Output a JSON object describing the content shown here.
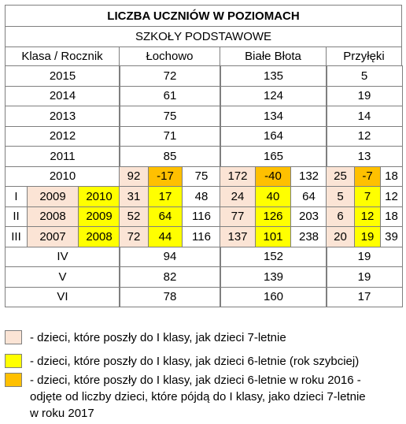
{
  "title": "LICZBA UCZNIÓW W POZIOMACH",
  "subtitle": "SZKOŁY PODSTAWOWE",
  "headers": [
    "Klasa / Rocznik",
    "Łochowo",
    "Białe Błota",
    "Przyłęki"
  ],
  "simple_rows_top": [
    {
      "year": "2015",
      "values": [
        "72",
        "135",
        "5"
      ]
    },
    {
      "year": "2014",
      "values": [
        "61",
        "124",
        "19"
      ]
    },
    {
      "year": "2013",
      "values": [
        "75",
        "134",
        "14"
      ]
    },
    {
      "year": "2012",
      "values": [
        "71",
        "164",
        "12"
      ]
    },
    {
      "year": "2011",
      "values": [
        "85",
        "165",
        "13"
      ]
    }
  ],
  "row_2010": {
    "year": "2010",
    "values": [
      [
        "92",
        "-17",
        "75"
      ],
      [
        "172",
        "-40",
        "132"
      ],
      [
        "25",
        "-7",
        "18"
      ]
    ],
    "colors": [
      "peach",
      "orange",
      "none"
    ]
  },
  "split_rows": [
    {
      "class": "I",
      "years": [
        "2009",
        "2010"
      ],
      "values": [
        [
          "31",
          "17",
          "48"
        ],
        [
          "24",
          "40",
          "64"
        ],
        [
          "5",
          "7",
          "12"
        ]
      ]
    },
    {
      "class": "II",
      "years": [
        "2008",
        "2009"
      ],
      "values": [
        [
          "52",
          "64",
          "116"
        ],
        [
          "77",
          "126",
          "203"
        ],
        [
          "6",
          "12",
          "18"
        ]
      ]
    },
    {
      "class": "III",
      "years": [
        "2007",
        "2008"
      ],
      "values": [
        [
          "72",
          "44",
          "116"
        ],
        [
          "137",
          "101",
          "238"
        ],
        [
          "20",
          "19",
          "39"
        ]
      ]
    }
  ],
  "simple_rows_bottom": [
    {
      "label": "IV",
      "values": [
        "94",
        "152",
        "19"
      ]
    },
    {
      "label": "V",
      "values": [
        "82",
        "139",
        "19"
      ]
    },
    {
      "label": "VI",
      "values": [
        "78",
        "160",
        "17"
      ]
    }
  ],
  "colors": {
    "peach": "#fbe4d5",
    "yellow": "#ffff00",
    "orange": "#ffc000",
    "border": "#7f7f7f"
  },
  "legend": [
    {
      "color": "peach",
      "text": "- dzieci, które poszły do I klasy, jak dzieci 7-letnie"
    },
    {
      "color": "yellow",
      "text": "- dzieci, które poszły do I klasy, jak dzieci 6-letnie (rok szybciej)"
    },
    {
      "color": "orange",
      "text": "- dzieci, które poszły do I klasy, jak dzieci 6-letnie w roku 2016 -\nodjęte od liczby dzieci, które pójdą do I klasy, jako dzieci 7-letnie\nw roku 2017"
    }
  ]
}
